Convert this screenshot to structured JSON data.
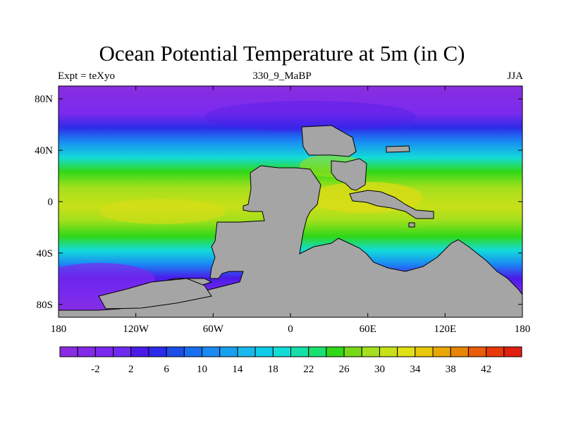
{
  "figure": {
    "title": "Ocean Potential Temperature at 5m (in C)",
    "left_label": "Expt = teXyo",
    "center_label": "330_9_MaBP",
    "right_label": "JJA"
  },
  "map": {
    "lon_range": [
      -180,
      180
    ],
    "lat_range": [
      -90,
      90
    ],
    "x_ticks": [
      {
        "value": -180,
        "label": "180"
      },
      {
        "value": -120,
        "label": "120W"
      },
      {
        "value": -60,
        "label": "60W"
      },
      {
        "value": 0,
        "label": "0"
      },
      {
        "value": 60,
        "label": "60E"
      },
      {
        "value": 120,
        "label": "120E"
      },
      {
        "value": 180,
        "label": "180"
      }
    ],
    "y_ticks": [
      {
        "value": 80,
        "label": "80N"
      },
      {
        "value": 40,
        "label": "40N"
      },
      {
        "value": 0,
        "label": "0"
      },
      {
        "value": -40,
        "label": "40S"
      },
      {
        "value": -80,
        "label": "80S"
      }
    ],
    "land_color": "#a5a5a5"
  },
  "colorbar": {
    "colors": [
      "#8a2be2",
      "#8329e8",
      "#7a2aee",
      "#6f2bf0",
      "#4a1be8",
      "#2d2be8",
      "#1d4ee8",
      "#1a6ef0",
      "#1a8af4",
      "#1aa0f0",
      "#18b8ec",
      "#10cce8",
      "#12dcd8",
      "#14e0a8",
      "#18e070",
      "#30d818",
      "#78d818",
      "#a4e01c",
      "#c8e018",
      "#e0e014",
      "#e8c80a",
      "#e8a808",
      "#e88408",
      "#e85c0a",
      "#e83808",
      "#e02010"
    ],
    "labels": [
      {
        "index": 2,
        "text": "-2"
      },
      {
        "index": 4,
        "text": "2"
      },
      {
        "index": 6,
        "text": "6"
      },
      {
        "index": 8,
        "text": "10"
      },
      {
        "index": 10,
        "text": "14"
      },
      {
        "index": 12,
        "text": "18"
      },
      {
        "index": 14,
        "text": "22"
      },
      {
        "index": 16,
        "text": "26"
      },
      {
        "index": 18,
        "text": "30"
      },
      {
        "index": 20,
        "text": "34"
      },
      {
        "index": 22,
        "text": "38"
      },
      {
        "index": 24,
        "text": "42"
      }
    ]
  }
}
